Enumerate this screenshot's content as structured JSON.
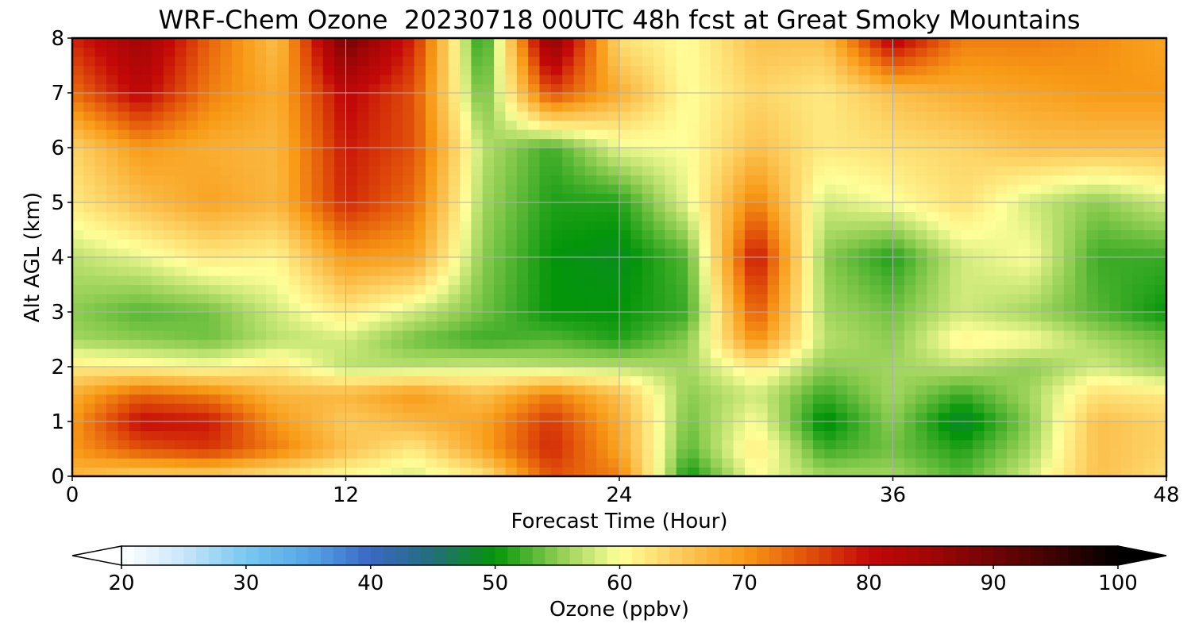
{
  "chart_data": {
    "type": "heatmap",
    "title": "WRF-Chem Ozone  20230718 00UTC 48h fcst at Great Smoky Mountains",
    "xlabel": "Forecast Time (Hour)",
    "ylabel": "Alt AGL (km)",
    "xlim": [
      0,
      48
    ],
    "ylim": [
      0,
      8
    ],
    "xticks": [
      0,
      12,
      24,
      36,
      48
    ],
    "yticks": [
      0,
      1,
      2,
      3,
      4,
      5,
      6,
      7,
      8
    ],
    "grid": true,
    "x": [
      0,
      3,
      6,
      9,
      12,
      15,
      18,
      21,
      24,
      27,
      30,
      33,
      36,
      39,
      42,
      45,
      48
    ],
    "y": [
      0,
      0.5,
      1,
      1.5,
      2,
      2.5,
      3,
      4,
      5,
      6,
      7,
      8
    ],
    "z": [
      [
        67,
        64,
        64,
        62,
        60,
        58,
        62,
        75,
        72,
        50,
        60,
        56,
        56,
        53,
        58,
        66,
        63
      ],
      [
        70,
        75,
        77,
        72,
        66,
        62,
        69,
        78,
        69,
        53,
        62,
        52,
        54,
        51,
        56,
        66,
        64
      ],
      [
        70,
        80,
        79,
        70,
        65,
        67,
        69,
        77,
        68,
        54,
        60,
        49,
        55,
        48,
        55,
        66,
        64
      ],
      [
        68,
        74,
        72,
        67,
        67,
        70,
        66,
        72,
        66,
        55,
        58,
        52,
        56,
        52,
        56,
        63,
        62
      ],
      [
        62,
        61,
        60,
        62,
        57,
        57,
        58,
        57,
        57,
        56,
        62,
        55,
        56,
        57,
        55,
        58,
        55
      ],
      [
        56,
        55,
        54,
        57,
        58,
        54,
        52,
        53,
        51,
        55,
        71,
        57,
        55,
        61,
        60,
        56,
        54
      ],
      [
        55,
        53,
        54,
        58,
        62,
        58,
        54,
        50,
        50,
        52,
        75,
        56,
        54,
        58,
        56,
        53,
        50
      ],
      [
        57,
        59,
        62,
        61,
        70,
        69,
        55,
        50,
        49,
        53,
        80,
        55,
        51,
        58,
        60,
        52,
        52
      ],
      [
        62,
        66,
        69,
        67,
        78,
        73,
        56,
        51,
        51,
        59,
        72,
        58,
        60,
        63,
        58,
        55,
        58
      ],
      [
        64,
        70,
        68,
        67,
        79,
        75,
        57,
        52,
        59,
        60,
        66,
        62,
        63,
        64,
        66,
        66,
        66
      ],
      [
        73,
        81,
        72,
        68,
        81,
        75,
        53,
        76,
        68,
        60,
        64,
        62,
        66,
        68,
        69,
        70,
        70
      ],
      [
        78,
        85,
        74,
        66,
        90,
        78,
        50,
        88,
        63,
        60,
        66,
        66,
        82,
        72,
        72,
        71,
        69
      ]
    ],
    "colorbar": {
      "label": "Ozone  (ppbv)",
      "min": 20,
      "max": 100,
      "ticks": [
        20,
        30,
        40,
        50,
        60,
        70,
        80,
        90,
        100
      ],
      "extend": "both",
      "colorstops": [
        [
          20,
          "#ffffff"
        ],
        [
          25,
          "#c8e6f8"
        ],
        [
          30,
          "#78c8f0"
        ],
        [
          35,
          "#56a6e6"
        ],
        [
          40,
          "#3a68c4"
        ],
        [
          45,
          "#236e78"
        ],
        [
          50,
          "#04950a"
        ],
        [
          55,
          "#8ccc50"
        ],
        [
          60,
          "#ffff99"
        ],
        [
          65,
          "#fcca5a"
        ],
        [
          70,
          "#f89a16"
        ],
        [
          75,
          "#e2530a"
        ],
        [
          80,
          "#c40808"
        ],
        [
          85,
          "#a00606"
        ],
        [
          90,
          "#700404"
        ],
        [
          95,
          "#3c0202"
        ],
        [
          100,
          "#000000"
        ]
      ]
    }
  }
}
